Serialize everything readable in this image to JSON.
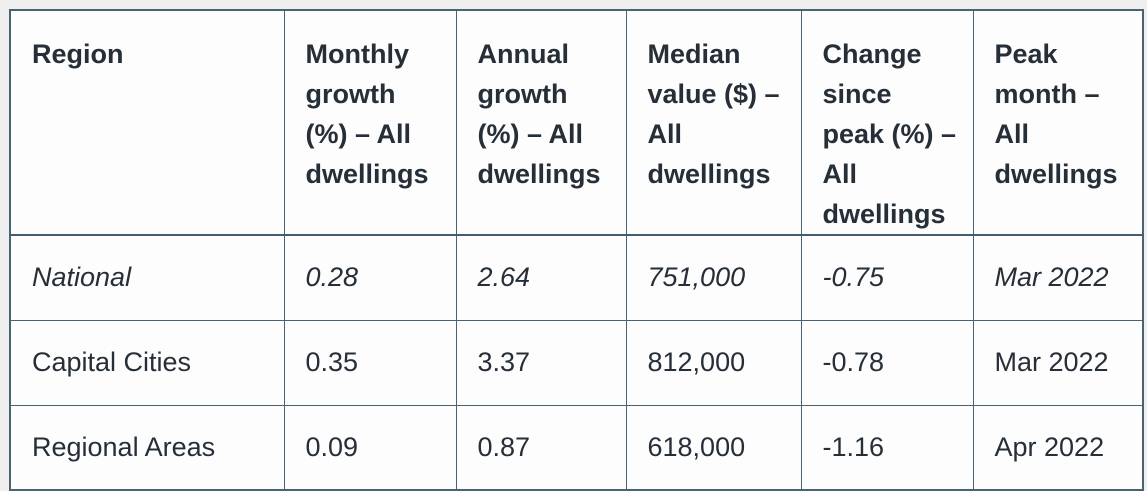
{
  "colors": {
    "table_border": "#4a6372",
    "header_separator": "#445d6e",
    "text": "#262e38",
    "page_background": "#efefef",
    "table_background": "#fdfdfd"
  },
  "table": {
    "columns": [
      {
        "id": "region",
        "label": "Region"
      },
      {
        "id": "monthly_growth",
        "label": "Monthly growth (%) – All dwellings"
      },
      {
        "id": "annual_growth",
        "label": "Annual growth (%) – All dwellings"
      },
      {
        "id": "median_value",
        "label": "Median value ($) – All dwellings"
      },
      {
        "id": "change_since_peak",
        "label": "Change since peak (%) – All dwellings"
      },
      {
        "id": "peak_month",
        "label": "Peak month – All dwellings"
      }
    ],
    "rows": [
      {
        "style": "italic",
        "cells": [
          "National",
          "0.28",
          "2.64",
          "751,000",
          "-0.75",
          "Mar 2022"
        ]
      },
      {
        "style": "normal",
        "cells": [
          "Capital Cities",
          "0.35",
          "3.37",
          "812,000",
          "-0.78",
          "Mar 2022"
        ]
      },
      {
        "style": "normal",
        "cells": [
          "Regional Areas",
          "0.09",
          "0.87",
          "618,000",
          "-1.16",
          "Apr 2022"
        ]
      }
    ]
  },
  "chart_data": {
    "type": "table",
    "columns": [
      "Region",
      "Monthly growth (%) – All dwellings",
      "Annual growth (%) – All dwellings",
      "Median value ($) – All dwellings",
      "Change since peak (%) – All dwellings",
      "Peak month – All dwellings"
    ],
    "rows": [
      [
        "National",
        0.28,
        2.64,
        751000,
        -0.75,
        "Mar 2022"
      ],
      [
        "Capital Cities",
        0.35,
        3.37,
        812000,
        -0.78,
        "Mar 2022"
      ],
      [
        "Regional Areas",
        0.09,
        0.87,
        618000,
        -1.16,
        "Apr 2022"
      ]
    ],
    "layout_hints": {
      "header_row_bold": true,
      "first_data_row_italic": true,
      "grid": true
    }
  }
}
